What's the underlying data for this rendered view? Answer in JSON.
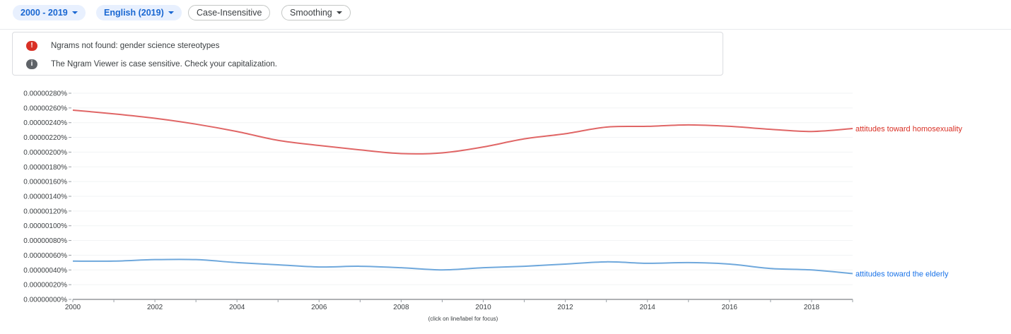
{
  "toolbar": {
    "year_range": "2000 - 2019",
    "corpus": "English (2019)",
    "case_label": "Case-Insensitive",
    "smoothing_label": "Smoothing"
  },
  "alerts": [
    {
      "icon": "error-icon",
      "text": "Ngrams not found: gender science stereotypes",
      "color": "#d93025"
    },
    {
      "icon": "info-icon",
      "text": "The Ngram Viewer is case sensitive. Check your capitalization.",
      "color": "#5f6368"
    }
  ],
  "chart_data": {
    "type": "line",
    "footnote": "(click on line/label for focus)",
    "xlim": [
      2000,
      2019
    ],
    "ylim": [
      0,
      2.8e-06
    ],
    "x_ticks": [
      "2000",
      "2002",
      "2004",
      "2006",
      "2008",
      "2010",
      "2012",
      "2014",
      "2016",
      "2018"
    ],
    "y_ticks": [
      "0.00000000%",
      "0.00000020%",
      "0.00000040%",
      "0.00000060%",
      "0.00000080%",
      "0.00000100%",
      "0.00000120%",
      "0.00000140%",
      "0.00000160%",
      "0.00000180%",
      "0.00000200%",
      "0.00000220%",
      "0.00000240%",
      "0.00000260%",
      "0.00000280%"
    ],
    "grid": true,
    "series": [
      {
        "name": "attitudes toward homosexuality",
        "color": "#e06666",
        "label_color": "#d93025",
        "x": [
          2000,
          2001,
          2002,
          2003,
          2004,
          2005,
          2006,
          2007,
          2008,
          2009,
          2010,
          2011,
          2012,
          2013,
          2014,
          2015,
          2016,
          2017,
          2018,
          2019
        ],
        "values": [
          2.57e-06,
          2.52e-06,
          2.46e-06,
          2.38e-06,
          2.28e-06,
          2.16e-06,
          2.09e-06,
          2.03e-06,
          1.98e-06,
          1.99e-06,
          2.07e-06,
          2.18e-06,
          2.25e-06,
          2.34e-06,
          2.35e-06,
          2.37e-06,
          2.35e-06,
          2.31e-06,
          2.28e-06,
          2.32e-06
        ]
      },
      {
        "name": "attitudes toward the elderly",
        "color": "#6fa8dc",
        "label_color": "#1a73e8",
        "x": [
          2000,
          2001,
          2002,
          2003,
          2004,
          2005,
          2006,
          2007,
          2008,
          2009,
          2010,
          2011,
          2012,
          2013,
          2014,
          2015,
          2016,
          2017,
          2018,
          2019
        ],
        "values": [
          5.2e-07,
          5.2e-07,
          5.4e-07,
          5.4e-07,
          5e-07,
          4.7e-07,
          4.4e-07,
          4.5e-07,
          4.3e-07,
          4e-07,
          4.3e-07,
          4.5e-07,
          4.8e-07,
          5.1e-07,
          4.9e-07,
          5e-07,
          4.8e-07,
          4.2e-07,
          4e-07,
          3.5e-07
        ]
      }
    ]
  }
}
